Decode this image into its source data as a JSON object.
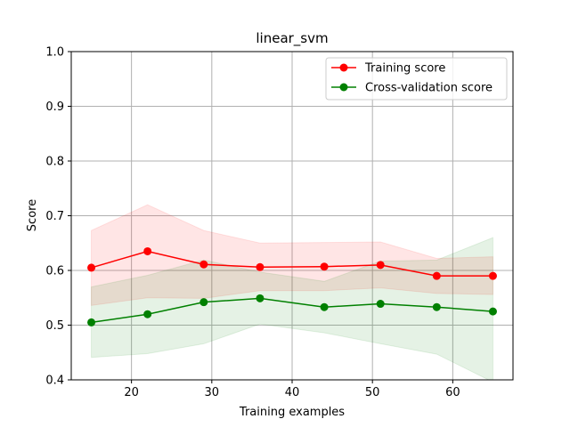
{
  "chart_data": {
    "type": "line",
    "title": "linear_svm",
    "xlabel": "Training examples",
    "ylabel": "Score",
    "xlim": [
      12.5,
      67.5
    ],
    "ylim": [
      0.4,
      1.0
    ],
    "xticks": [
      20,
      30,
      40,
      50,
      60
    ],
    "yticks": [
      0.4,
      0.5,
      0.6,
      0.7,
      0.8,
      0.9,
      1.0
    ],
    "ytick_labels": [
      "0.4",
      "0.5",
      "0.6",
      "0.7",
      "0.8",
      "0.9",
      "1.0"
    ],
    "grid": true,
    "legend_position": "top-right",
    "x": [
      15,
      22,
      29,
      36,
      44,
      51,
      58,
      65
    ],
    "series": [
      {
        "name": "Training score",
        "color": "#ff0000",
        "values": [
          0.605,
          0.635,
          0.611,
          0.606,
          0.607,
          0.61,
          0.59,
          0.59
        ],
        "upper": [
          0.673,
          0.72,
          0.673,
          0.65,
          0.651,
          0.652,
          0.622,
          0.625
        ],
        "lower": [
          0.536,
          0.55,
          0.549,
          0.563,
          0.563,
          0.568,
          0.558,
          0.556
        ]
      },
      {
        "name": "Cross-validation score",
        "color": "#008000",
        "values": [
          0.505,
          0.52,
          0.542,
          0.549,
          0.533,
          0.539,
          0.533,
          0.525
        ],
        "upper": [
          0.57,
          0.591,
          0.619,
          0.597,
          0.58,
          0.617,
          0.619,
          0.66
        ],
        "lower": [
          0.441,
          0.448,
          0.466,
          0.502,
          0.486,
          0.466,
          0.447,
          0.396
        ]
      }
    ]
  }
}
